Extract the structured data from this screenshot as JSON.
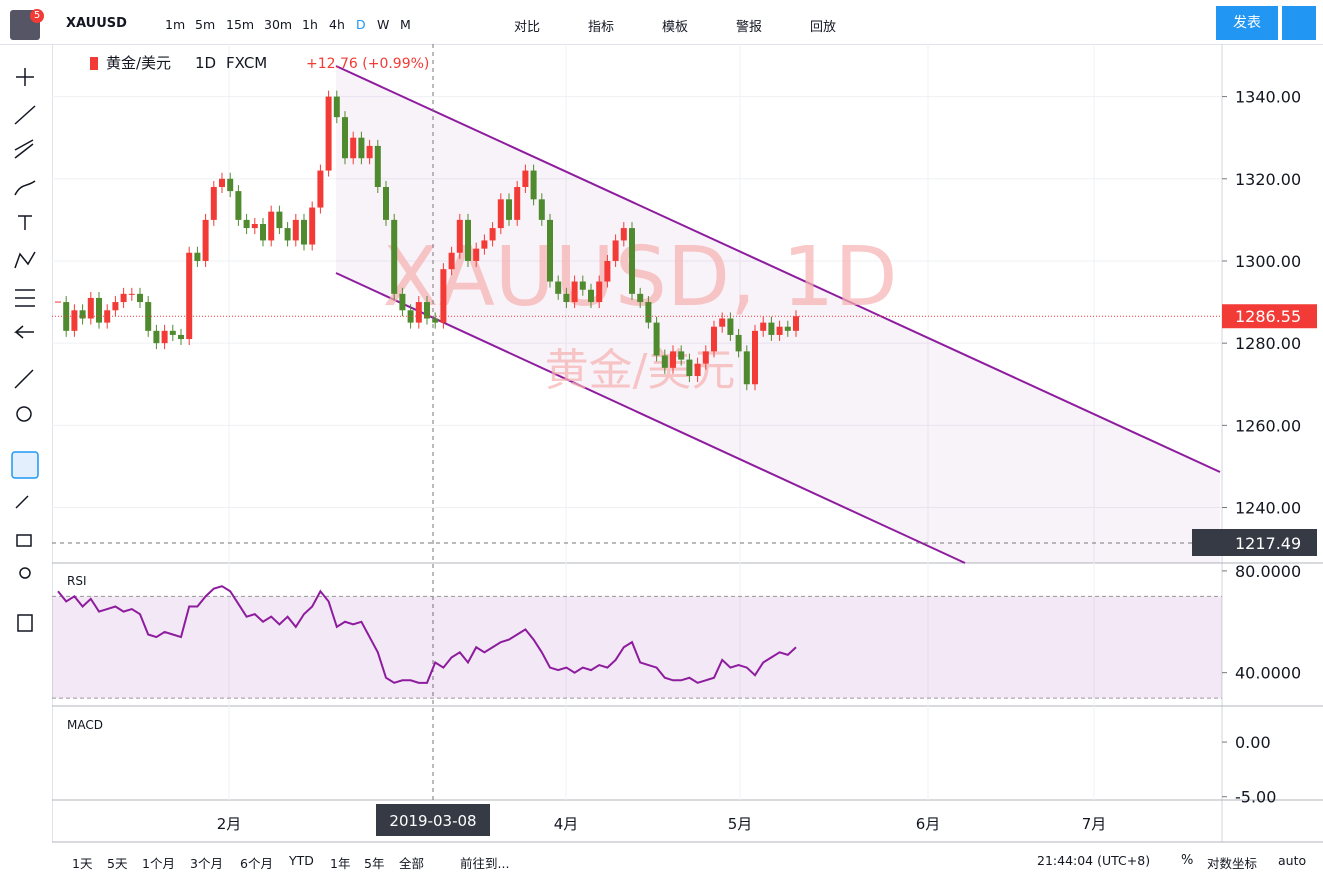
{
  "toolbar": {
    "symbol": "XAUUSD",
    "badge": "5",
    "intervals": [
      "1m",
      "5m",
      "15m",
      "30m",
      "1h",
      "4h",
      "D",
      "W",
      "M"
    ],
    "buttons": [
      "对比",
      "指标",
      "模板",
      "警报",
      "回放"
    ],
    "publish": "发表"
  },
  "legend": {
    "name": "黄金/美元",
    "interval": "1D",
    "source": "FXCM",
    "change": "+12.76 (+0.99%)"
  },
  "watermark": {
    "symbol": "XAUUSD, 1D",
    "name": "黄金/美元"
  },
  "crosshair": {
    "date": "2019-03-08",
    "price": "1217.49"
  },
  "bottom": {
    "ranges": [
      "1天",
      "5天",
      "1个月",
      "3个月",
      "6个月",
      "YTD",
      "1年",
      "5年",
      "全部"
    ],
    "goto": "前往到...",
    "clock": "21:44:04 (UTC+8)",
    "percent": "%",
    "log": "对数坐标",
    "auto": "auto"
  },
  "chart_data": {
    "type": "candlestick",
    "months": [
      "2月",
      "4月",
      "5月",
      "6月",
      "7月"
    ],
    "close": [
      1290,
      1283,
      1288,
      1286,
      1291,
      1285,
      1288,
      1290,
      1292,
      1292,
      1290,
      1283,
      1280,
      1283,
      1282,
      1281,
      1302,
      1300,
      1310,
      1318,
      1320,
      1317,
      1310,
      1308,
      1309,
      1305,
      1312,
      1308,
      1305,
      1310,
      1304,
      1313,
      1322,
      1340,
      1335,
      1325,
      1330,
      1325,
      1328,
      1318,
      1310,
      1292,
      1288,
      1285,
      1290,
      1286,
      1285,
      1298,
      1302,
      1310,
      1300,
      1303,
      1305,
      1308,
      1315,
      1310,
      1318,
      1322,
      1315,
      1310,
      1295,
      1292,
      1290,
      1295,
      1293,
      1290,
      1295,
      1300,
      1305,
      1308,
      1292,
      1290,
      1285,
      1277,
      1274,
      1278,
      1276,
      1272,
      1275,
      1278,
      1284,
      1286,
      1282,
      1278,
      1270,
      1283,
      1285,
      1282,
      1284,
      1283,
      1286.55
    ],
    "up_color": "#f23b36",
    "down_color": "#4f8a2f",
    "last": {
      "value": 1286.55,
      "label": "1286.55"
    },
    "ylim": [
      1226.5,
      1352.8
    ],
    "yticks": [
      {
        "value": 1340,
        "label": "1340.00"
      },
      {
        "value": 1320,
        "label": "1320.00"
      },
      {
        "value": 1300,
        "label": "1300.00"
      },
      {
        "value": 1280,
        "label": "1280.00"
      },
      {
        "value": 1260,
        "label": "1260.00"
      },
      {
        "value": 1240,
        "label": "1240.00"
      }
    ],
    "rsi": {
      "name": "RSI",
      "color": "#8e1c9e",
      "values": [
        72,
        68,
        70,
        66,
        69,
        64,
        65,
        66,
        64,
        65,
        63,
        55,
        54,
        56,
        55,
        54,
        66,
        66,
        70,
        73,
        74,
        72,
        67,
        62,
        63,
        60,
        62,
        59,
        62,
        58,
        63,
        66,
        72,
        68,
        58,
        60,
        59,
        60,
        54,
        48,
        38,
        36,
        37,
        37,
        36,
        36,
        44,
        42,
        46,
        48,
        44,
        50,
        48,
        50,
        52,
        53,
        55,
        57,
        53,
        48,
        42,
        41,
        42,
        40,
        42,
        41,
        43,
        42,
        45,
        50,
        52,
        44,
        43,
        42,
        38,
        37,
        37,
        38,
        36,
        37,
        38,
        45,
        42,
        43,
        42,
        39,
        44,
        46,
        48,
        47,
        50
      ],
      "ylim": [
        26.9,
        83.1
      ],
      "yticks": [
        {
          "value": 80,
          "label": "80.0000"
        },
        {
          "value": 40,
          "label": "40.0000"
        }
      ],
      "band": [
        70,
        30
      ]
    },
    "macd": {
      "name": "MACD",
      "yticks": [
        {
          "value": 0,
          "label": "0.00"
        },
        {
          "value": -5,
          "label": "-5.00"
        }
      ],
      "ylim": [
        -5.3,
        3.3
      ]
    }
  }
}
